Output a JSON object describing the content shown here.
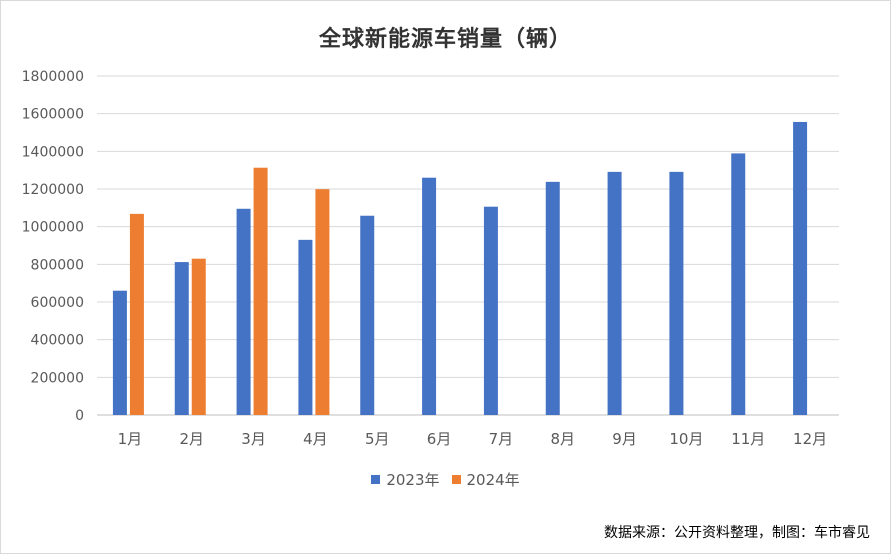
{
  "title": "全球新能源车销量（辆）",
  "source_note": "数据来源：公开资料整理，制图：车市睿见",
  "chart_data": {
    "type": "bar",
    "title": "全球新能源车销量（辆）",
    "xlabel": "",
    "ylabel": "",
    "ylim": [
      0,
      1800000
    ],
    "yticks": [
      0,
      200000,
      400000,
      600000,
      800000,
      1000000,
      1200000,
      1400000,
      1600000,
      1800000
    ],
    "grid": true,
    "legend_position": "bottom",
    "categories": [
      "1月",
      "2月",
      "3月",
      "4月",
      "5月",
      "6月",
      "7月",
      "8月",
      "9月",
      "10月",
      "11月",
      "12月"
    ],
    "series": [
      {
        "name": "2023年",
        "color": "#4472C4",
        "values": [
          660000,
          812000,
          1095000,
          930000,
          1058000,
          1260000,
          1106000,
          1238000,
          1291000,
          1291000,
          1389000,
          1556000
        ]
      },
      {
        "name": "2024年",
        "color": "#ED7D31",
        "values": [
          1068000,
          830000,
          1313000,
          1199000,
          null,
          null,
          null,
          null,
          null,
          null,
          null,
          null
        ]
      }
    ]
  }
}
